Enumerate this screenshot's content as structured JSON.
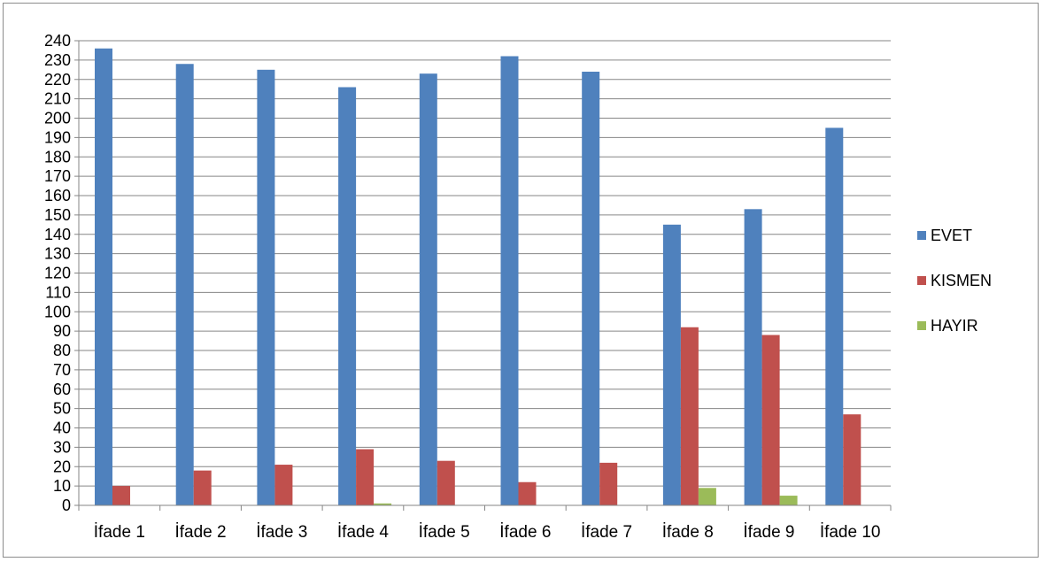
{
  "chart_data": {
    "type": "bar",
    "title": "",
    "xlabel": "",
    "ylabel": "",
    "categories": [
      "İfade 1",
      "İfade 2",
      "İfade 3",
      "İfade 4",
      "İfade 5",
      "İfade 6",
      "İfade 7",
      "İfade 8",
      "İfade 9",
      "İfade 10"
    ],
    "series": [
      {
        "name": "EVET",
        "color": "#4f81bd",
        "values": [
          236,
          228,
          225,
          216,
          223,
          232,
          224,
          145,
          153,
          195
        ]
      },
      {
        "name": "KISMEN",
        "color": "#c0504d",
        "values": [
          10,
          18,
          21,
          29,
          23,
          12,
          22,
          92,
          88,
          47
        ]
      },
      {
        "name": "HAYIR",
        "color": "#9bbb59",
        "values": [
          0,
          0,
          0,
          1,
          0,
          0,
          0,
          9,
          5,
          0
        ]
      }
    ],
    "ylim": [
      0,
      240
    ],
    "ytick_step": 10,
    "grid": true,
    "legend_position": "right"
  }
}
